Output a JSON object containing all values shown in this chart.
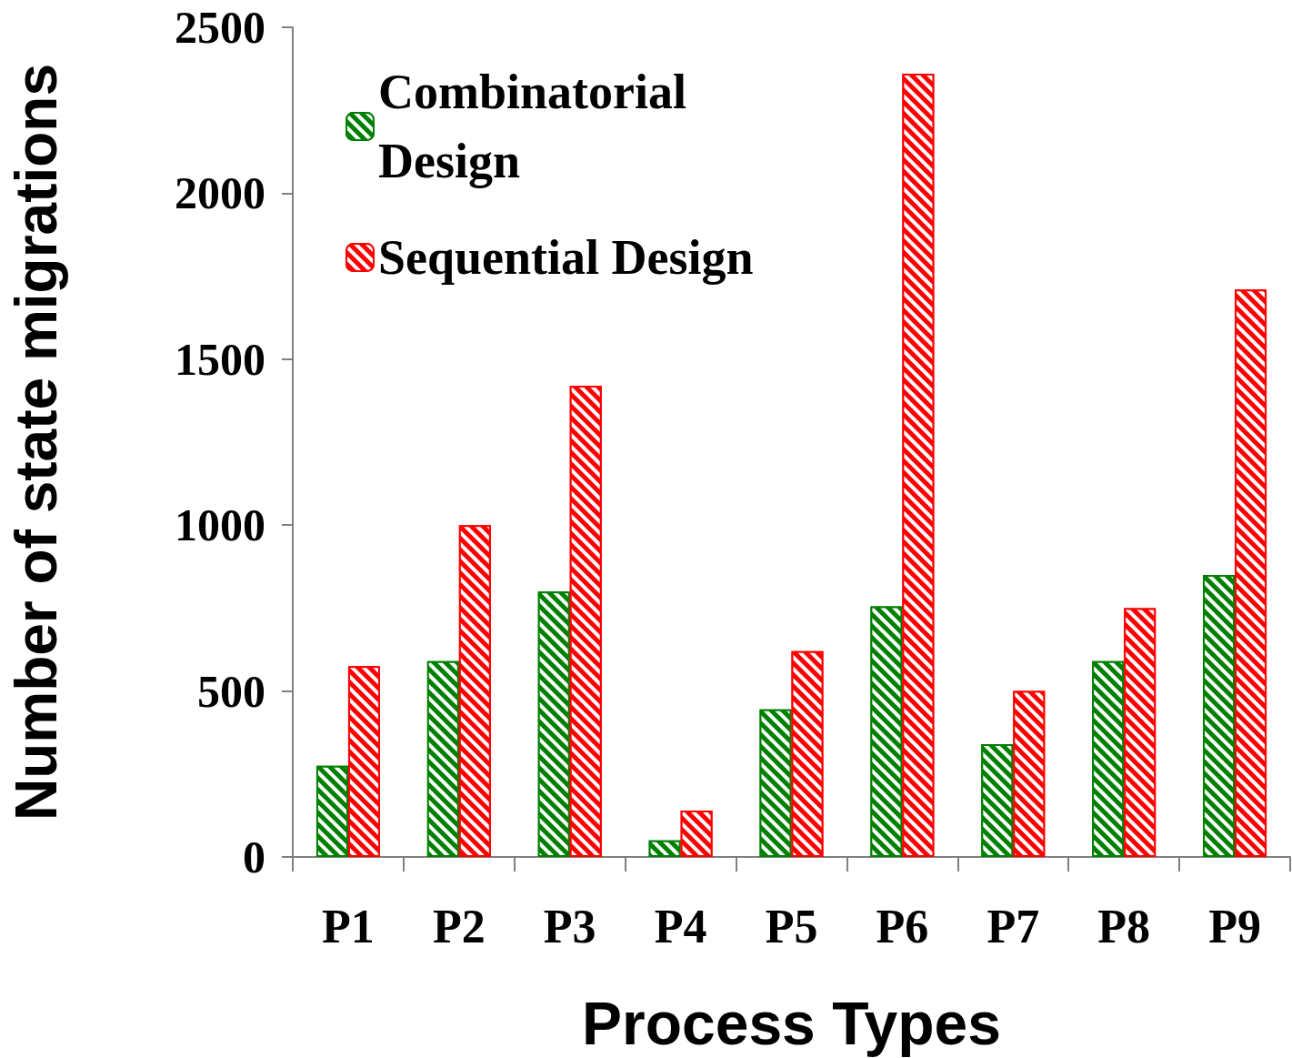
{
  "chart_data": {
    "type": "bar",
    "xlabel": "Process Types",
    "ylabel": "Number of state migrations",
    "categories": [
      "P1",
      "P2",
      "P3",
      "P4",
      "P5",
      "P6",
      "P7",
      "P8",
      "P9"
    ],
    "series": [
      {
        "name": "Combinatorial Design",
        "color": "#008000",
        "values": [
          275,
          590,
          800,
          50,
          445,
          755,
          340,
          590,
          850
        ]
      },
      {
        "name": "Sequential Design",
        "color": "#ff0000",
        "values": [
          575,
          1000,
          1420,
          140,
          620,
          2360,
          500,
          750,
          1710
        ]
      }
    ],
    "ylim": [
      0,
      2500
    ],
    "yticks": [
      0,
      500,
      1000,
      1500,
      2000,
      2500
    ],
    "grid": false,
    "legend": "top left"
  }
}
